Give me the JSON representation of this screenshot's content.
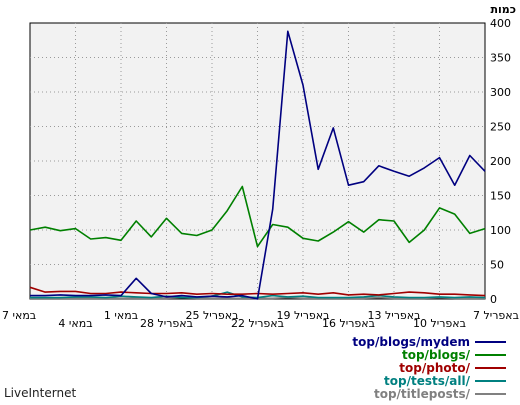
{
  "brand": "LiveInternet",
  "chart_data": {
    "type": "line",
    "ylabel": "כמות",
    "ylim": [
      0,
      400
    ],
    "yticks": [
      0,
      50,
      100,
      150,
      200,
      250,
      300,
      350,
      400
    ],
    "grid": true,
    "legend_position": "bottom-right",
    "x": [
      "7 באפריל",
      "8 באפריל",
      "9 באפריל",
      "10 באפריל",
      "11 באפריל",
      "12 באפריל",
      "13 באפריל",
      "14 באפריל",
      "15 באפריל",
      "16 באפריל",
      "17 באפריל",
      "18 באפריל",
      "19 באפריל",
      "20 באפריל",
      "21 באפריל",
      "22 באפריל",
      "23 באפריל",
      "24 באפריל",
      "25 באפריל",
      "26 באפריל",
      "27 באפריל",
      "28 באפריל",
      "29 באפריל",
      "30 באפריל",
      "1 במאי",
      "2 במאי",
      "3 במאי",
      "4 במאי",
      "5 במאי",
      "6 במאי",
      "7 במאי"
    ],
    "xtick_labels": [
      "7 באפריל",
      "10 באפריל",
      "13 באפריל",
      "16 באפריל",
      "19 באפריל",
      "22 באפריל",
      "25 באפריל",
      "28 באפריל",
      "1 במאי",
      "4 במאי",
      "7 במאי"
    ],
    "series": [
      {
        "name": "top/blogs/mydem",
        "color": "#000080",
        "values": [
          185,
          208,
          165,
          205,
          190,
          178,
          185,
          193,
          170,
          165,
          248,
          188,
          310,
          388,
          130,
          0,
          5,
          3,
          4,
          3,
          5,
          3,
          8,
          30,
          5,
          6,
          5,
          5,
          6,
          5,
          5
        ]
      },
      {
        "name": "top/blogs/",
        "color": "#008000",
        "values": [
          102,
          95,
          123,
          132,
          100,
          82,
          113,
          115,
          97,
          112,
          97,
          84,
          88,
          104,
          108,
          76,
          163,
          128,
          100,
          92,
          95,
          117,
          90,
          113,
          85,
          89,
          87,
          102,
          99,
          104,
          100
        ]
      },
      {
        "name": "top/photo/",
        "color": "#a00000",
        "values": [
          5,
          6,
          7,
          7,
          9,
          10,
          8,
          6,
          7,
          6,
          9,
          7,
          9,
          8,
          7,
          8,
          7,
          7,
          8,
          7,
          9,
          8,
          8,
          9,
          10,
          8,
          8,
          11,
          11,
          10,
          17
        ]
      },
      {
        "name": "top/tests/all/",
        "color": "#008080",
        "values": [
          2,
          3,
          2,
          3,
          2,
          2,
          3,
          5,
          3,
          2,
          2,
          2,
          4,
          3,
          5,
          2,
          3,
          10,
          4,
          2,
          2,
          4,
          2,
          3,
          4,
          2,
          3,
          3,
          2,
          2,
          2
        ]
      },
      {
        "name": "top/titleposts/",
        "color": "#808080",
        "values": [
          1,
          1,
          1,
          2,
          1,
          1,
          1,
          2,
          1,
          1,
          1,
          1,
          1,
          2,
          1,
          1,
          1,
          1,
          1,
          1,
          2,
          1,
          1,
          1,
          1,
          1,
          1,
          1,
          1,
          1,
          1
        ]
      }
    ]
  }
}
